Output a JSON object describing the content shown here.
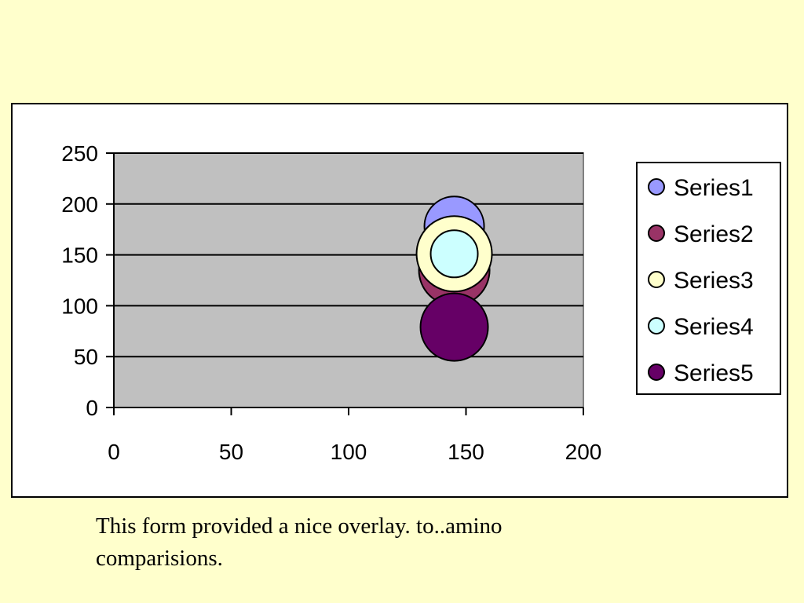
{
  "chart_data": {
    "type": "bubble",
    "title": "",
    "xlabel": "",
    "ylabel": "",
    "xlim": [
      0,
      200
    ],
    "ylim": [
      0,
      250
    ],
    "x_ticks": [
      0,
      50,
      100,
      150,
      200
    ],
    "y_ticks": [
      0,
      50,
      100,
      150,
      200,
      250
    ],
    "grid": "horizontal",
    "plot_background": "#c0c0c0",
    "legend_position": "right",
    "series": [
      {
        "name": "Series1",
        "color": "#9999ff",
        "points": [
          {
            "x": 145,
            "y": 178
          }
        ]
      },
      {
        "name": "Series2",
        "color": "#993366",
        "points": [
          {
            "x": 145,
            "y": 135
          }
        ]
      },
      {
        "name": "Series3",
        "color": "#ffffcc",
        "points": [
          {
            "x": 145,
            "y": 151
          }
        ]
      },
      {
        "name": "Series4",
        "color": "#ccffff",
        "points": [
          {
            "x": 145,
            "y": 151
          }
        ]
      },
      {
        "name": "Series5",
        "color": "#660066",
        "points": [
          {
            "x": 145,
            "y": 79
          }
        ]
      }
    ]
  },
  "caption": "This form provided a nice overlay. to..amino comparisions."
}
